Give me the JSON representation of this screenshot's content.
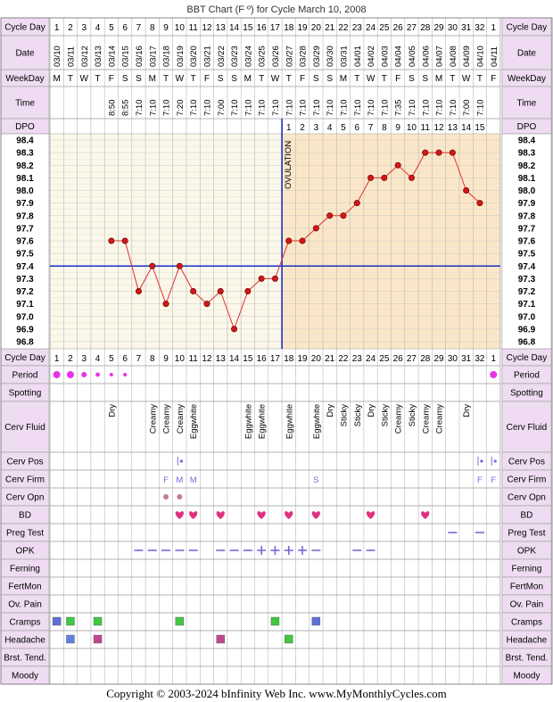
{
  "title": "BBT Chart (F º) for Cycle March 10, 2008",
  "footer": "Copyright © 2003-2024 bInfinity Web Inc.     www.MyMonthlyCycles.com",
  "row_labels": {
    "cycle_day": "Cycle Day",
    "date": "Date",
    "weekday": "WeekDay",
    "time": "Time",
    "dpo": "DPO",
    "period": "Period",
    "spotting": "Spotting",
    "cerv_fluid": "Cerv Fluid",
    "cerv_pos": "Cerv Pos",
    "cerv_firm": "Cerv Firm",
    "cerv_opn": "Cerv Opn",
    "bd": "BD",
    "preg_test": "Preg Test",
    "opk": "OPK",
    "ferning": "Ferning",
    "fertmon": "FertMon",
    "ov_pain": "Ov. Pain",
    "cramps": "Cramps",
    "headache": "Headache",
    "brst_tend": "Brst. Tend.",
    "moody": "Moody"
  },
  "ovulation_label": "OVULATION",
  "colors": {
    "grid": "#c8c8c8",
    "pre_bg": "#fbf8ea",
    "post_bg": "#fbe7c8",
    "line": "#e03030",
    "marker": "#d01818",
    "ovulation": "#1a2ec8",
    "coverline": "#1a2ec8",
    "period": "#e832e8",
    "bd": "#e03080",
    "opk": "#7868d8",
    "cramps_a": "#6070d8",
    "cramps_b": "#40c840",
    "headache_a": "#6080e0",
    "headache_b": "#c04890",
    "headache_c": "#40c840",
    "label_bg": "#efdcf2"
  },
  "cycle_days": [
    "1",
    "2",
    "3",
    "4",
    "5",
    "6",
    "7",
    "8",
    "9",
    "10",
    "11",
    "12",
    "13",
    "14",
    "15",
    "16",
    "17",
    "18",
    "19",
    "20",
    "21",
    "22",
    "23",
    "24",
    "25",
    "26",
    "27",
    "28",
    "29",
    "30",
    "31",
    "32",
    "1"
  ],
  "dates": [
    "03/10",
    "03/11",
    "03/12",
    "03/13",
    "03/14",
    "03/15",
    "03/16",
    "03/17",
    "03/18",
    "03/19",
    "03/20",
    "03/21",
    "03/22",
    "03/23",
    "03/24",
    "03/25",
    "03/26",
    "03/27",
    "03/28",
    "03/29",
    "03/30",
    "03/31",
    "04/01",
    "04/02",
    "04/03",
    "04/04",
    "04/05",
    "04/06",
    "04/07",
    "04/08",
    "04/09",
    "04/10",
    "04/11"
  ],
  "weekdays": [
    "M",
    "T",
    "W",
    "T",
    "F",
    "S",
    "S",
    "M",
    "T",
    "W",
    "T",
    "F",
    "S",
    "S",
    "M",
    "T",
    "W",
    "T",
    "F",
    "S",
    "S",
    "M",
    "T",
    "W",
    "T",
    "F",
    "S",
    "S",
    "M",
    "T",
    "W",
    "T",
    "F"
  ],
  "times": [
    "",
    "",
    "",
    "",
    "8:50",
    "8:55",
    "7:10",
    "7:10",
    "7:10",
    "7:20",
    "7:10",
    "7:10",
    "7:00",
    "7:10",
    "7:10",
    "7:10",
    "7:10",
    "7:10",
    "7:10",
    "7:10",
    "7:10",
    "7:10",
    "7:10",
    "7:10",
    "7:10",
    "7:35",
    "7:10",
    "7:10",
    "7:10",
    "7:10",
    "7:00",
    "7:10",
    ""
  ],
  "dpo": [
    "",
    "",
    "",
    "",
    "",
    "",
    "",
    "",
    "",
    "",
    "",
    "",
    "",
    "",
    "",
    "",
    "",
    "1",
    "2",
    "3",
    "4",
    "5",
    "6",
    "7",
    "8",
    "9",
    "10",
    "11",
    "12",
    "13",
    "14",
    "15",
    ""
  ],
  "cerv_fluid": [
    "",
    "",
    "",
    "",
    "Dry",
    "",
    "",
    "Creamy",
    "Creamy",
    "Creamy",
    "Eggwhite",
    "",
    "",
    "",
    "Eggwhite",
    "Eggwhite",
    "",
    "Eggwhite",
    "",
    "Eggwhite",
    "Dry",
    "Sticky",
    "Sticky",
    "Dry",
    "Sticky",
    "Creamy",
    "Sticky",
    "Creamy",
    "Creamy",
    "",
    "Dry",
    "",
    ""
  ],
  "cerv_firm": [
    "",
    "",
    "",
    "",
    "",
    "",
    "",
    "",
    "F",
    "M",
    "M",
    "",
    "",
    "",
    "",
    "",
    "",
    "",
    "",
    "S",
    "",
    "",
    "",
    "",
    "",
    "",
    "",
    "",
    "",
    "",
    "",
    "F",
    "F"
  ],
  "period_days": [
    1,
    2,
    3,
    4,
    5,
    6,
    33
  ],
  "period_sizes": [
    2,
    2,
    1.5,
    1.2,
    1,
    1,
    2
  ],
  "cerv_pos_days": [
    10,
    32,
    33
  ],
  "cerv_opn_days": [
    9,
    10
  ],
  "bd_days": [
    10,
    11,
    13,
    16,
    18,
    20,
    24,
    28
  ],
  "preg_test_days": [
    30,
    32
  ],
  "opk_neg_days": [
    7,
    8,
    9,
    10,
    11,
    13,
    14,
    15,
    20,
    23,
    24
  ],
  "opk_pos_days": [
    16,
    17,
    18,
    19
  ],
  "cramps_days": [
    1,
    2,
    4,
    10,
    17,
    20
  ],
  "headache_days": [
    2,
    4,
    13,
    18
  ],
  "chart_data": {
    "type": "line",
    "title": "BBT Chart (F º) for Cycle March 10, 2008",
    "ylabel": "",
    "ylim": [
      96.8,
      98.4
    ],
    "y_ticks": [
      "98.4",
      "98.3",
      "98.2",
      "98.1",
      "98.0",
      "97.9",
      "97.8",
      "97.7",
      "97.6",
      "97.5",
      "97.4",
      "97.3",
      "97.2",
      "97.1",
      "97.0",
      "96.9",
      "96.8"
    ],
    "x": [
      5,
      6,
      7,
      8,
      9,
      10,
      11,
      12,
      13,
      14,
      15,
      16,
      17,
      18,
      19,
      20,
      21,
      22,
      23,
      24,
      25,
      26,
      27,
      28,
      29,
      30,
      31,
      32
    ],
    "series": [
      {
        "values": [
          97.6,
          97.6,
          97.2,
          97.4,
          97.1,
          97.4,
          97.2,
          97.1,
          97.2,
          96.9,
          97.2,
          97.3,
          97.3,
          97.6,
          97.6,
          97.7,
          97.8,
          97.8,
          97.9,
          98.1,
          98.1,
          98.2,
          98.1,
          98.3,
          98.3,
          98.3,
          98.0,
          97.9
        ]
      }
    ],
    "ovulation_day": 17,
    "coverline": 97.4,
    "grid": true
  }
}
